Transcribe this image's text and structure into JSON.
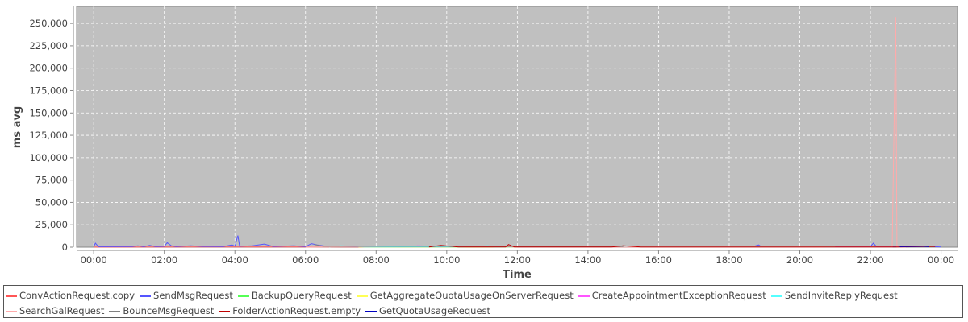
{
  "chart_data": {
    "type": "line",
    "title": "",
    "xlabel": "Time",
    "ylabel": "ms avg",
    "xlim": [
      "-00:29",
      "24:28"
    ],
    "ylim": [
      0,
      269000
    ],
    "grid": true,
    "legend_placement": "bottom",
    "x_ticks": [
      "00:00",
      "02:00",
      "04:00",
      "06:00",
      "08:00",
      "10:00",
      "12:00",
      "14:00",
      "16:00",
      "18:00",
      "20:00",
      "22:00",
      "00:00"
    ],
    "y_ticks": [
      "0",
      "25,000",
      "50,000",
      "75,000",
      "100,000",
      "125,000",
      "150,000",
      "175,000",
      "200,000",
      "225,000",
      "250,000"
    ],
    "y_tick_values": [
      0,
      25000,
      50000,
      75000,
      100000,
      125000,
      150000,
      175000,
      200000,
      225000,
      250000
    ],
    "colors": {
      "plot_background": "#c0c0c0",
      "grid": "#ffffff"
    },
    "series": [
      {
        "name": "ConvActionRequest.copy",
        "color": "#ff5555",
        "points": [
          [
            "00:00",
            100
          ],
          [
            "06:30",
            300
          ],
          [
            "09:00",
            200
          ],
          [
            "12:00",
            300
          ],
          [
            "16:00",
            200
          ],
          [
            "20:00",
            200
          ],
          [
            "20:40",
            100
          ]
        ]
      },
      {
        "name": "SendMsgRequest",
        "color": "#5555ff",
        "points": [
          [
            "00:00",
            500
          ],
          [
            "00:03",
            4500
          ],
          [
            "00:08",
            500
          ],
          [
            "01:05",
            600
          ],
          [
            "01:15",
            1500
          ],
          [
            "01:25",
            500
          ],
          [
            "01:35",
            2000
          ],
          [
            "01:45",
            600
          ],
          [
            "01:55",
            800
          ],
          [
            "02:00",
            1000
          ],
          [
            "02:05",
            5000
          ],
          [
            "02:12",
            1500
          ],
          [
            "02:20",
            600
          ],
          [
            "02:45",
            1500
          ],
          [
            "03:05",
            800
          ],
          [
            "03:40",
            600
          ],
          [
            "03:55",
            2500
          ],
          [
            "04:00",
            1200
          ],
          [
            "04:05",
            13000
          ],
          [
            "04:08",
            1000
          ],
          [
            "04:30",
            1500
          ],
          [
            "04:50",
            3500
          ],
          [
            "05:05",
            800
          ],
          [
            "05:40",
            1500
          ],
          [
            "06:00",
            600
          ],
          [
            "06:10",
            4000
          ],
          [
            "06:20",
            2500
          ],
          [
            "06:40",
            500
          ],
          [
            "08:30",
            500
          ],
          [
            "10:40",
            800
          ],
          [
            "12:30",
            500
          ],
          [
            "13:20",
            500
          ],
          [
            "18:40",
            500
          ],
          [
            "18:50",
            2500
          ],
          [
            "18:55",
            500
          ],
          [
            "20:40",
            500
          ],
          [
            "21:10",
            600
          ],
          [
            "22:00",
            800
          ],
          [
            "22:05",
            4500
          ],
          [
            "22:10",
            800
          ],
          [
            "23:20",
            800
          ],
          [
            "23:40",
            1200
          ],
          [
            "23:50",
            500
          ],
          [
            "24:00",
            300
          ]
        ]
      },
      {
        "name": "BackupQueryRequest",
        "color": "#55ff55",
        "points": [
          [
            "07:50",
            300
          ],
          [
            "10:20",
            300
          ],
          [
            "11:20",
            400
          ],
          [
            "11:50",
            200
          ]
        ]
      },
      {
        "name": "GetAggregateQuotaUsageOnServerRequest",
        "color": "#ffff55",
        "points": [
          [
            "07:30",
            200
          ],
          [
            "11:00",
            200
          ],
          [
            "12:00",
            200
          ]
        ]
      },
      {
        "name": "CreateAppointmentExceptionRequest",
        "color": "#ff55ff",
        "points": [
          [
            "09:00",
            200
          ],
          [
            "09:10",
            1500
          ],
          [
            "09:30",
            1200
          ],
          [
            "09:50",
            300
          ]
        ]
      },
      {
        "name": "SendInviteReplyRequest",
        "color": "#55ffff",
        "points": [
          [
            "06:40",
            300
          ],
          [
            "07:00",
            1500
          ],
          [
            "07:20",
            1000
          ],
          [
            "07:40",
            300
          ],
          [
            "10:30",
            400
          ],
          [
            "11:10",
            1500
          ],
          [
            "11:20",
            300
          ],
          [
            "20:20",
            600
          ],
          [
            "21:00",
            500
          ]
        ]
      },
      {
        "name": "SearchGalRequest",
        "color": "#ffaaaa",
        "points": [
          [
            "06:00",
            100
          ],
          [
            "10:00",
            1500
          ],
          [
            "12:00",
            300
          ],
          [
            "22:37",
            300
          ],
          [
            "22:43",
            257000
          ],
          [
            "22:45",
            300
          ],
          [
            "23:00",
            200
          ]
        ]
      },
      {
        "name": "BounceMsgRequest",
        "color": "#808080",
        "points": [
          [
            "06:15",
            3000
          ],
          [
            "06:30",
            1000
          ],
          [
            "11:30",
            800
          ],
          [
            "15:00",
            600
          ]
        ]
      },
      {
        "name": "FolderActionRequest.empty",
        "color": "#c00000",
        "points": [
          [
            "09:30",
            300
          ],
          [
            "09:50",
            2000
          ],
          [
            "10:20",
            300
          ],
          [
            "11:40",
            300
          ],
          [
            "11:45",
            3000
          ],
          [
            "11:55",
            300
          ],
          [
            "14:40",
            300
          ],
          [
            "15:00",
            1500
          ],
          [
            "15:30",
            300
          ],
          [
            "22:45",
            300
          ],
          [
            "23:50",
            800
          ]
        ]
      },
      {
        "name": "GetQuotaUsageRequest",
        "color": "#0000c0",
        "points": [
          [
            "22:50",
            500
          ],
          [
            "23:30",
            1000
          ],
          [
            "23:40",
            500
          ]
        ]
      }
    ]
  }
}
